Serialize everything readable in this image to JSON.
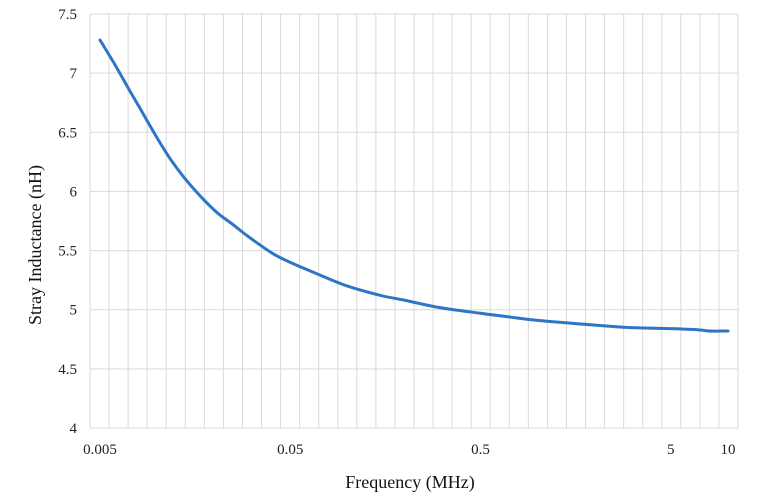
{
  "chart_data": {
    "type": "line",
    "title": "",
    "xlabel": "Frequency (MHz)",
    "ylabel": "Stray Inductance (nH)",
    "x_scale": "log",
    "xlim": [
      0.005,
      10
    ],
    "ylim": [
      4,
      7.5
    ],
    "grid": true,
    "x_tick_labels": [
      {
        "value": 0.005,
        "label": "0.005"
      },
      {
        "value": 0.05,
        "label": "0.05"
      },
      {
        "value": 0.5,
        "label": "0.5"
      },
      {
        "value": 5,
        "label": "5"
      },
      {
        "value": 10,
        "label": "10"
      }
    ],
    "y_tick_labels": [
      {
        "value": 4,
        "label": "4"
      },
      {
        "value": 4.5,
        "label": "4.5"
      },
      {
        "value": 5,
        "label": "5"
      },
      {
        "value": 5.5,
        "label": "5.5"
      },
      {
        "value": 6,
        "label": "6"
      },
      {
        "value": 6.5,
        "label": "6.5"
      },
      {
        "value": 7,
        "label": "7"
      },
      {
        "value": 7.5,
        "label": "7.5"
      }
    ],
    "series": [
      {
        "name": "Stray Inductance",
        "color": "#2e75c6",
        "x": [
          0.005,
          0.006,
          0.007,
          0.008,
          0.01,
          0.012,
          0.015,
          0.02,
          0.025,
          0.03,
          0.04,
          0.05,
          0.07,
          0.1,
          0.15,
          0.2,
          0.3,
          0.5,
          0.7,
          1,
          2,
          3,
          5,
          7,
          8,
          10
        ],
        "values": [
          7.28,
          7.07,
          6.88,
          6.72,
          6.45,
          6.25,
          6.05,
          5.84,
          5.72,
          5.62,
          5.48,
          5.4,
          5.3,
          5.2,
          5.12,
          5.08,
          5.02,
          4.97,
          4.94,
          4.91,
          4.87,
          4.85,
          4.84,
          4.83,
          4.82,
          4.82
        ]
      }
    ]
  }
}
